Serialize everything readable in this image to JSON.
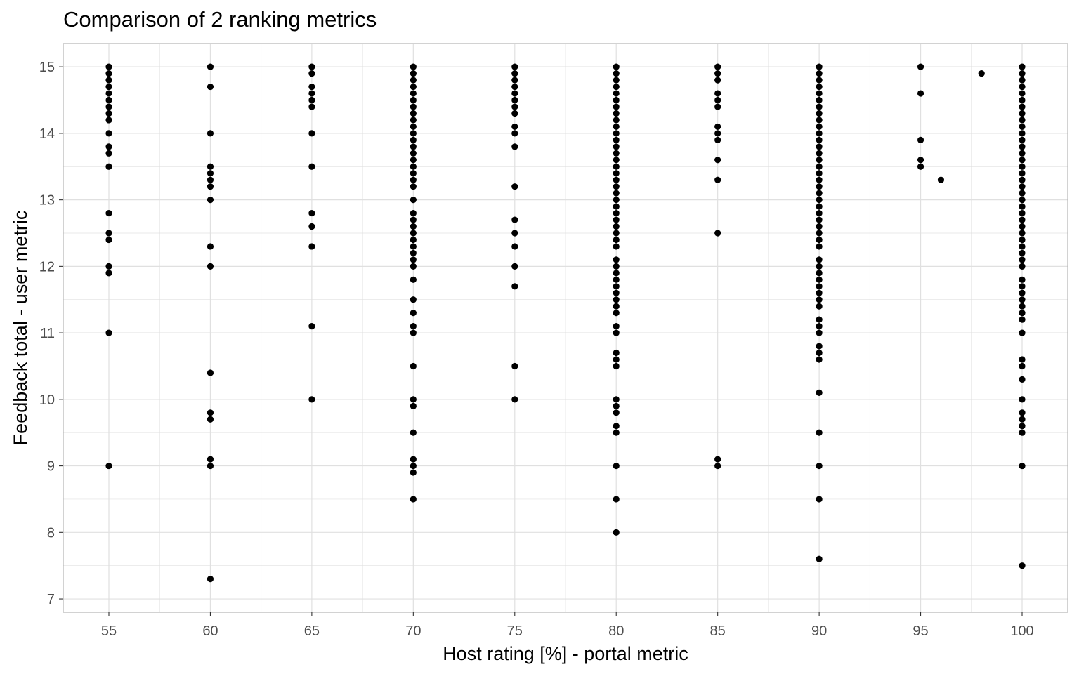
{
  "chart_data": {
    "type": "scatter",
    "title": "Comparison of 2 ranking metrics",
    "xlabel": "Host rating [%] - portal metric",
    "ylabel": "Feedback total - user metric",
    "xlim": [
      52.75,
      102.25
    ],
    "ylim": [
      6.8,
      15.35
    ],
    "xticks": [
      55,
      60,
      65,
      70,
      75,
      80,
      85,
      90,
      95,
      100
    ],
    "yticks": [
      7,
      8,
      9,
      10,
      11,
      12,
      13,
      14,
      15
    ],
    "grid": true,
    "legend": "none",
    "point_color": "#000000",
    "grid_color": "#e0e0e0",
    "panel_border_color": "#b3b3b3",
    "points": [
      {
        "x": 55,
        "y": [
          15,
          14.9,
          14.8,
          14.7,
          14.6,
          14.5,
          14.4,
          14.3,
          14.2,
          14,
          13.8,
          13.7,
          13.5,
          12.8,
          12.5,
          12.4,
          12,
          11.9,
          11,
          9
        ]
      },
      {
        "x": 60,
        "y": [
          15,
          14.7,
          14,
          13.5,
          13.4,
          13.3,
          13.2,
          13,
          12.3,
          12,
          10.4,
          9.8,
          9.7,
          9.1,
          9,
          7.3
        ]
      },
      {
        "x": 65,
        "y": [
          15,
          14.9,
          14.7,
          14.6,
          14.5,
          14.4,
          14,
          13.5,
          12.8,
          12.6,
          12.3,
          11.1,
          10
        ]
      },
      {
        "x": 70,
        "y": [
          15,
          14.9,
          14.8,
          14.7,
          14.6,
          14.5,
          14.4,
          14.3,
          14.2,
          14.1,
          14,
          13.9,
          13.8,
          13.7,
          13.6,
          13.5,
          13.4,
          13.3,
          13.2,
          13,
          12.8,
          12.7,
          12.6,
          12.5,
          12.4,
          12.3,
          12.2,
          12.1,
          12,
          11.8,
          11.5,
          11.3,
          11.1,
          11,
          10.5,
          10,
          9.9,
          9.5,
          9.1,
          9,
          8.9,
          8.5
        ]
      },
      {
        "x": 75,
        "y": [
          15,
          14.9,
          14.8,
          14.7,
          14.6,
          14.5,
          14.4,
          14.3,
          14.1,
          14,
          13.8,
          13.2,
          12.7,
          12.5,
          12.3,
          12,
          11.7,
          10.5,
          10
        ]
      },
      {
        "x": 80,
        "y": [
          15,
          14.9,
          14.8,
          14.7,
          14.6,
          14.5,
          14.4,
          14.3,
          14.2,
          14.1,
          14,
          13.9,
          13.8,
          13.7,
          13.6,
          13.5,
          13.4,
          13.3,
          13.2,
          13.1,
          13,
          12.9,
          12.8,
          12.7,
          12.6,
          12.5,
          12.4,
          12.3,
          12.1,
          12,
          11.9,
          11.8,
          11.7,
          11.6,
          11.5,
          11.4,
          11.3,
          11.1,
          11,
          10.7,
          10.6,
          10.5,
          10,
          9.9,
          9.8,
          9.6,
          9.5,
          9,
          8.5,
          8
        ]
      },
      {
        "x": 85,
        "y": [
          15,
          14.9,
          14.8,
          14.6,
          14.5,
          14.4,
          14.1,
          14,
          13.9,
          13.6,
          13.3,
          12.5,
          9.1,
          9
        ]
      },
      {
        "x": 90,
        "y": [
          15,
          14.9,
          14.8,
          14.7,
          14.6,
          14.5,
          14.4,
          14.3,
          14.2,
          14.1,
          14,
          13.9,
          13.8,
          13.7,
          13.6,
          13.5,
          13.4,
          13.3,
          13.2,
          13.1,
          13,
          12.9,
          12.8,
          12.7,
          12.6,
          12.5,
          12.4,
          12.3,
          12.1,
          12,
          11.9,
          11.8,
          11.7,
          11.6,
          11.5,
          11.4,
          11.2,
          11.1,
          11,
          10.8,
          10.7,
          10.6,
          10.1,
          9.5,
          9,
          8.5,
          7.6
        ]
      },
      {
        "x": 95,
        "y": [
          15,
          14.6,
          13.9,
          13.6,
          13.5
        ]
      },
      {
        "x": 96,
        "y": [
          13.3
        ]
      },
      {
        "x": 98,
        "y": [
          14.9
        ]
      },
      {
        "x": 100,
        "y": [
          15,
          14.9,
          14.8,
          14.7,
          14.6,
          14.5,
          14.4,
          14.3,
          14.2,
          14.1,
          14,
          13.9,
          13.8,
          13.7,
          13.6,
          13.5,
          13.4,
          13.3,
          13.2,
          13.1,
          13,
          12.9,
          12.8,
          12.7,
          12.6,
          12.5,
          12.4,
          12.3,
          12.2,
          12.1,
          12,
          11.8,
          11.7,
          11.6,
          11.5,
          11.4,
          11.3,
          11.2,
          11,
          10.6,
          10.5,
          10.3,
          10,
          9.8,
          9.7,
          9.6,
          9.5,
          9,
          7.5
        ]
      }
    ]
  }
}
